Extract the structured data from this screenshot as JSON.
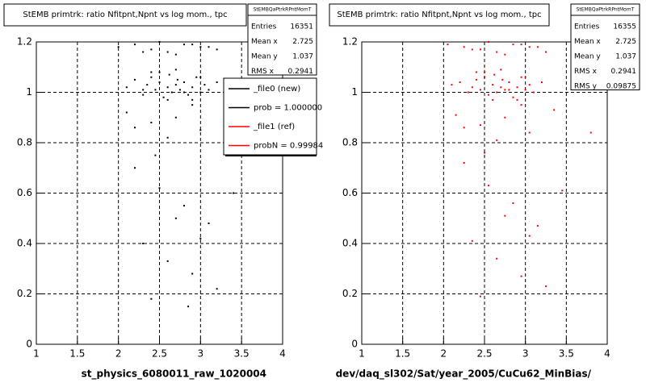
{
  "chart_data": [
    {
      "type": "scatter",
      "title": "StEMB primtrk: ratio Nfitpnt,Npnt vs log mom., tpc",
      "xlabel": "st_physics_6080011_raw_1020004",
      "xlim": [
        1,
        4
      ],
      "ylim": [
        0,
        1.2
      ],
      "xticks": [
        1,
        1.5,
        2,
        2.5,
        3,
        3.5,
        4
      ],
      "yticks": [
        0,
        0.2,
        0.4,
        0.6,
        0.8,
        1,
        1.2
      ],
      "grid": true,
      "series": [
        {
          "color": "#000000",
          "x": [
            2.1,
            2.2,
            2.3,
            2.35,
            2.4,
            2.45,
            2.5,
            2.55,
            2.6,
            2.62,
            2.65,
            2.7,
            2.72,
            2.75,
            2.8,
            2.85,
            2.9,
            2.95,
            3.0,
            3.05,
            3.1,
            3.2,
            2.5,
            2.6,
            2.7,
            2.8,
            2.9,
            2.4,
            2.3,
            3.0,
            2.0,
            2.2,
            2.4,
            2.6,
            2.8,
            3.0,
            3.2,
            2.5,
            2.7,
            2.9,
            2.3,
            3.1,
            2.1,
            2.4,
            2.7,
            3.0,
            3.3,
            2.6,
            2.9,
            2.2,
            2.2,
            2.5,
            2.8,
            3.1,
            3.4,
            2.3,
            2.6,
            2.9,
            3.2,
            2.4,
            2.7,
            3.0,
            2.45,
            2.85
          ],
          "y": [
            1.02,
            1.05,
            0.99,
            1.03,
            1.06,
            1.01,
            1.04,
            0.98,
            1.02,
            1.07,
            1.0,
            1.03,
            1.05,
            1.01,
            1.04,
            0.99,
            1.02,
            1.06,
            1.0,
            1.03,
            1.01,
            1.04,
            1.08,
            0.97,
            1.09,
            1.0,
            0.97,
            1.08,
            1.01,
            1.06,
            1.18,
            1.19,
            1.17,
            1.16,
            1.19,
            1.18,
            1.17,
            1.2,
            1.15,
            1.19,
            1.16,
            1.18,
            0.92,
            0.88,
            0.9,
            0.85,
            0.93,
            0.82,
            0.95,
            0.86,
            0.7,
            0.62,
            0.55,
            0.48,
            0.6,
            0.4,
            0.33,
            0.28,
            0.22,
            0.18,
            0.5,
            0.42,
            0.75,
            0.15
          ]
        }
      ],
      "stats": {
        "title": "StEMBQaPtrkRPntMomT",
        "rows": [
          [
            "Entries",
            16351
          ],
          [
            "Mean x",
            2.725
          ],
          [
            "Mean y",
            1.037
          ],
          [
            "RMS x",
            0.2941
          ]
        ]
      },
      "legend": [
        {
          "label": "_file0 (new)",
          "color": "#000000"
        },
        {
          "label": "prob = 1.000000",
          "color": "#000000"
        },
        {
          "label": "_file1 (ref)",
          "color": "#ff0000"
        },
        {
          "label": "probN = 0.99984",
          "color": "#ff0000"
        }
      ]
    },
    {
      "type": "scatter",
      "title": "StEMB primtrk: ratio Nfitpnt,Npnt vs log mom., tpc",
      "xlabel": "dev/daq_sl302/Sat/year_2005/CuCu62_MinBias/",
      "xlim": [
        1,
        4
      ],
      "ylim": [
        0,
        1.2
      ],
      "xticks": [
        1,
        1.5,
        2,
        2.5,
        3,
        3.5,
        4
      ],
      "yticks": [
        0,
        0.2,
        0.4,
        0.6,
        0.8,
        1,
        1.2
      ],
      "grid": true,
      "series": [
        {
          "color": "#ff0000",
          "x": [
            2.1,
            2.2,
            2.3,
            2.35,
            2.4,
            2.45,
            2.5,
            2.55,
            2.6,
            2.62,
            2.65,
            2.7,
            2.72,
            2.75,
            2.8,
            2.85,
            2.9,
            2.95,
            3.0,
            3.05,
            3.1,
            3.2,
            2.5,
            2.6,
            2.7,
            2.8,
            2.9,
            2.4,
            2.3,
            3.0,
            2.05,
            2.25,
            2.45,
            2.65,
            2.85,
            3.05,
            3.25,
            2.55,
            2.75,
            2.95,
            2.35,
            3.15,
            2.15,
            2.45,
            2.75,
            3.05,
            3.35,
            2.65,
            2.95,
            2.25,
            2.25,
            2.55,
            2.85,
            3.15,
            3.45,
            2.35,
            2.65,
            2.95,
            3.25,
            2.45,
            2.75,
            3.05,
            2.5,
            3.8
          ],
          "y": [
            1.03,
            1.04,
            1.0,
            1.02,
            1.05,
            1.01,
            1.06,
            0.99,
            1.03,
            1.07,
            1.0,
            1.02,
            1.05,
            1.01,
            1.04,
            0.98,
            1.02,
            1.06,
            1.01,
            1.03,
            1.0,
            1.04,
            1.08,
            0.97,
            1.09,
            1.01,
            0.97,
            1.08,
            1.0,
            1.06,
            1.19,
            1.18,
            1.17,
            1.16,
            1.19,
            1.18,
            1.16,
            1.2,
            1.15,
            1.19,
            1.17,
            1.18,
            0.91,
            0.87,
            0.9,
            0.84,
            0.93,
            0.81,
            0.95,
            0.86,
            0.72,
            0.63,
            0.56,
            0.47,
            0.61,
            0.41,
            0.34,
            0.27,
            0.23,
            0.19,
            0.51,
            0.43,
            0.76,
            0.84
          ]
        }
      ],
      "stats": {
        "title": "StEMBQaPtrkRPntMomT",
        "rows": [
          [
            "Entries",
            16355
          ],
          [
            "Mean x",
            2.725
          ],
          [
            "Mean y",
            1.037
          ],
          [
            "RMS x",
            0.2941
          ],
          [
            "RMS y",
            0.09875
          ]
        ]
      }
    }
  ]
}
